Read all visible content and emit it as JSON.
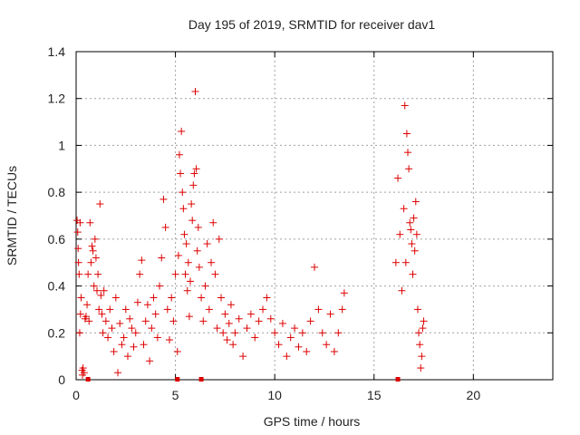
{
  "chart_data": {
    "type": "scatter",
    "title": "Day 195 of 2019, SRMTID for receiver dav1",
    "xlabel": "GPS time / hours",
    "ylabel": "SRMTID / TECUs",
    "xlim": [
      0,
      24
    ],
    "ylim": [
      0,
      1.4
    ],
    "x_ticks": [
      0,
      5,
      10,
      15,
      20
    ],
    "y_ticks": [
      0,
      0.2,
      0.4,
      0.6,
      0.8,
      1,
      1.2,
      1.4
    ],
    "x_tick_labels": [
      "0",
      "5",
      "10",
      "15",
      "20"
    ],
    "y_tick_labels": [
      "0",
      "0.2",
      "0.4",
      "0.6",
      "0.8",
      "1",
      "1.2",
      "1.4"
    ],
    "grid": true,
    "marker": "+",
    "color": "#dd0000",
    "series": [
      {
        "name": "dav1",
        "points": [
          [
            0.05,
            0.68
          ],
          [
            0.08,
            0.63
          ],
          [
            0.1,
            0.56
          ],
          [
            0.12,
            0.5
          ],
          [
            0.15,
            0.45
          ],
          [
            0.18,
            0.2
          ],
          [
            0.2,
            0.67
          ],
          [
            0.22,
            0.28
          ],
          [
            0.25,
            0.35
          ],
          [
            0.3,
            0.04
          ],
          [
            0.32,
            0.02
          ],
          [
            0.35,
            0.05
          ],
          [
            0.4,
            0.03
          ],
          [
            0.45,
            0.26
          ],
          [
            0.5,
            0.27
          ],
          [
            0.55,
            0.32
          ],
          [
            0.6,
            0.45
          ],
          [
            0.65,
            0.25
          ],
          [
            0.7,
            0.67
          ],
          [
            0.75,
            0.5
          ],
          [
            0.8,
            0.57
          ],
          [
            0.85,
            0.55
          ],
          [
            0.9,
            0.4
          ],
          [
            0.95,
            0.6
          ],
          [
            1.0,
            0.52
          ],
          [
            1.05,
            0.38
          ],
          [
            1.1,
            0.45
          ],
          [
            1.15,
            0.3
          ],
          [
            1.2,
            0.75
          ],
          [
            1.25,
            0.36
          ],
          [
            1.3,
            0.28
          ],
          [
            1.35,
            0.2
          ],
          [
            1.4,
            0.38
          ],
          [
            1.5,
            0.25
          ],
          [
            1.6,
            0.18
          ],
          [
            1.7,
            0.3
          ],
          [
            1.8,
            0.22
          ],
          [
            1.9,
            0.12
          ],
          [
            2.0,
            0.35
          ],
          [
            2.1,
            0.03
          ],
          [
            2.2,
            0.24
          ],
          [
            2.3,
            0.15
          ],
          [
            2.4,
            0.18
          ],
          [
            2.5,
            0.3
          ],
          [
            2.6,
            0.1
          ],
          [
            2.7,
            0.26
          ],
          [
            2.8,
            0.22
          ],
          [
            2.9,
            0.14
          ],
          [
            3.0,
            0.2
          ],
          [
            3.1,
            0.33
          ],
          [
            3.2,
            0.45
          ],
          [
            3.3,
            0.51
          ],
          [
            3.4,
            0.15
          ],
          [
            3.5,
            0.25
          ],
          [
            3.6,
            0.32
          ],
          [
            3.7,
            0.08
          ],
          [
            3.8,
            0.22
          ],
          [
            3.9,
            0.35
          ],
          [
            4.0,
            0.28
          ],
          [
            4.1,
            0.18
          ],
          [
            4.2,
            0.4
          ],
          [
            4.3,
            0.52
          ],
          [
            4.4,
            0.77
          ],
          [
            4.5,
            0.65
          ],
          [
            4.6,
            0.3
          ],
          [
            4.7,
            0.17
          ],
          [
            4.8,
            0.35
          ],
          [
            4.9,
            0.25
          ],
          [
            5.0,
            0.45
          ],
          [
            5.1,
            0.12
          ],
          [
            5.15,
            0.53
          ],
          [
            5.2,
            0.96
          ],
          [
            5.25,
            0.88
          ],
          [
            5.3,
            1.06
          ],
          [
            5.35,
            0.8
          ],
          [
            5.4,
            0.73
          ],
          [
            5.45,
            0.62
          ],
          [
            5.5,
            0.45
          ],
          [
            5.55,
            0.58
          ],
          [
            5.6,
            0.38
          ],
          [
            5.65,
            0.5
          ],
          [
            5.7,
            0.27
          ],
          [
            5.75,
            0.42
          ],
          [
            5.8,
            0.75
          ],
          [
            5.85,
            0.68
          ],
          [
            5.9,
            0.83
          ],
          [
            5.95,
            0.88
          ],
          [
            6.0,
            1.23
          ],
          [
            6.05,
            0.9
          ],
          [
            6.1,
            0.55
          ],
          [
            6.15,
            0.65
          ],
          [
            6.2,
            0.48
          ],
          [
            6.3,
            0.35
          ],
          [
            6.4,
            0.25
          ],
          [
            6.5,
            0.4
          ],
          [
            6.6,
            0.58
          ],
          [
            6.7,
            0.3
          ],
          [
            6.8,
            0.5
          ],
          [
            6.9,
            0.67
          ],
          [
            7.0,
            0.45
          ],
          [
            7.1,
            0.22
          ],
          [
            7.2,
            0.6
          ],
          [
            7.3,
            0.35
          ],
          [
            7.4,
            0.2
          ],
          [
            7.5,
            0.28
          ],
          [
            7.6,
            0.17
          ],
          [
            7.7,
            0.24
          ],
          [
            7.8,
            0.32
          ],
          [
            7.9,
            0.15
          ],
          [
            8.0,
            0.2
          ],
          [
            8.2,
            0.26
          ],
          [
            8.4,
            0.1
          ],
          [
            8.6,
            0.22
          ],
          [
            8.8,
            0.28
          ],
          [
            9.0,
            0.18
          ],
          [
            9.2,
            0.25
          ],
          [
            9.4,
            0.3
          ],
          [
            9.6,
            0.35
          ],
          [
            9.8,
            0.26
          ],
          [
            10.0,
            0.2
          ],
          [
            10.2,
            0.15
          ],
          [
            10.4,
            0.24
          ],
          [
            10.6,
            0.1
          ],
          [
            10.8,
            0.18
          ],
          [
            11.0,
            0.22
          ],
          [
            11.2,
            0.14
          ],
          [
            11.4,
            0.2
          ],
          [
            11.6,
            0.12
          ],
          [
            11.8,
            0.25
          ],
          [
            12.0,
            0.48
          ],
          [
            12.2,
            0.3
          ],
          [
            12.4,
            0.2
          ],
          [
            12.6,
            0.15
          ],
          [
            12.8,
            0.28
          ],
          [
            13.0,
            0.12
          ],
          [
            13.2,
            0.2
          ],
          [
            13.4,
            0.3
          ],
          [
            13.5,
            0.37
          ],
          [
            16.1,
            0.5
          ],
          [
            16.2,
            0.86
          ],
          [
            16.3,
            0.62
          ],
          [
            16.4,
            0.38
          ],
          [
            16.5,
            0.73
          ],
          [
            16.55,
            1.17
          ],
          [
            16.6,
            0.5
          ],
          [
            16.65,
            1.05
          ],
          [
            16.7,
            0.97
          ],
          [
            16.75,
            0.9
          ],
          [
            16.8,
            0.67
          ],
          [
            16.85,
            0.64
          ],
          [
            16.9,
            0.58
          ],
          [
            16.95,
            0.45
          ],
          [
            17.0,
            0.69
          ],
          [
            17.05,
            0.55
          ],
          [
            17.1,
            0.76
          ],
          [
            17.15,
            0.62
          ],
          [
            17.2,
            0.3
          ],
          [
            17.25,
            0.2
          ],
          [
            17.3,
            0.15
          ],
          [
            17.35,
            0.05
          ],
          [
            17.4,
            0.1
          ],
          [
            17.45,
            0.22
          ],
          [
            17.5,
            0.25
          ]
        ]
      }
    ],
    "baseline_markers": [
      0.6,
      5.1,
      6.3,
      16.2
    ]
  }
}
